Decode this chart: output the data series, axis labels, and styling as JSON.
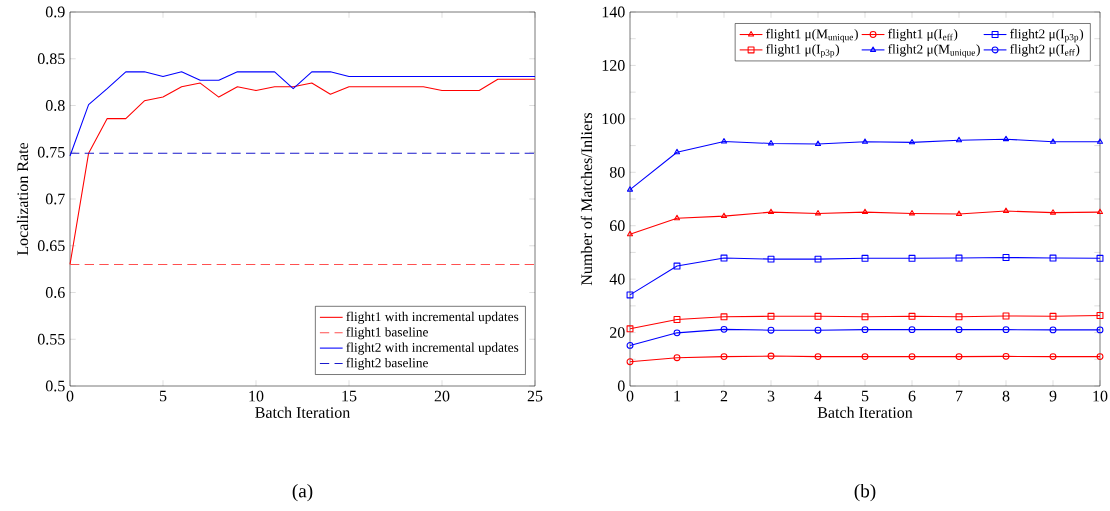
{
  "chart_data": [
    {
      "type": "line",
      "xlabel": "Batch Iteration",
      "ylabel": "Localization Rate",
      "xlim": [
        0,
        25
      ],
      "xticks": [
        0,
        5,
        10,
        15,
        20,
        25
      ],
      "ylim": [
        0.5,
        0.9
      ],
      "yticks": [
        0.5,
        0.55,
        0.6,
        0.65,
        0.7,
        0.75,
        0.8,
        0.85,
        0.9
      ],
      "grid": false,
      "legend": "bottom right",
      "annotations": [
        "(a)"
      ],
      "series": [
        {
          "name": "flight1 with incremental updates",
          "color": "#ff0000",
          "line_style": "solid",
          "x": [
            0,
            1,
            2,
            3,
            4,
            5,
            6,
            7,
            8,
            9,
            10,
            11,
            12,
            13,
            14,
            15,
            16,
            17,
            18,
            19,
            20,
            21,
            22,
            23,
            24,
            25
          ],
          "values": [
            0.63,
            0.749,
            0.786,
            0.786,
            0.805,
            0.809,
            0.82,
            0.824,
            0.809,
            0.82,
            0.816,
            0.82,
            0.82,
            0.824,
            0.812,
            0.82,
            0.82,
            0.82,
            0.82,
            0.82,
            0.816,
            0.816,
            0.816,
            0.828,
            0.828,
            0.828
          ]
        },
        {
          "name": "flight1 baseline",
          "color": "#ff5050",
          "line_style": "dashed",
          "x": [
            0,
            25
          ],
          "values": [
            0.63,
            0.63
          ]
        },
        {
          "name": "flight2 with incremental updates",
          "color": "#0000ff",
          "line_style": "solid",
          "x": [
            0,
            1,
            2,
            3,
            4,
            5,
            6,
            7,
            8,
            9,
            10,
            11,
            12,
            13,
            14,
            15,
            16,
            17,
            18,
            19,
            20,
            21,
            22,
            23,
            24,
            25
          ],
          "values": [
            0.746,
            0.801,
            0.818,
            0.836,
            0.836,
            0.831,
            0.836,
            0.827,
            0.827,
            0.836,
            0.836,
            0.836,
            0.818,
            0.836,
            0.836,
            0.831,
            0.831,
            0.831,
            0.831,
            0.831,
            0.831,
            0.831,
            0.831,
            0.831,
            0.831,
            0.831
          ]
        },
        {
          "name": "flight2 baseline",
          "color": "#1a1acc",
          "line_style": "dashed",
          "x": [
            0,
            25
          ],
          "values": [
            0.749,
            0.749
          ]
        }
      ]
    },
    {
      "type": "line",
      "xlabel": "Batch Iteration",
      "ylabel": "Number of Matches/Inliers",
      "xlim": [
        0,
        10
      ],
      "xticks": [
        0,
        1,
        2,
        3,
        4,
        5,
        6,
        7,
        8,
        9,
        10
      ],
      "ylim": [
        0,
        140
      ],
      "yticks": [
        0,
        {
          "value": 10,
          "label": null
        },
        20,
        {
          "value": 30,
          "label": null
        },
        40,
        {
          "value": 50,
          "label": null
        },
        60,
        {
          "value": 70,
          "label": null
        },
        80,
        {
          "value": 90,
          "label": null
        },
        100,
        {
          "value": 110,
          "label": null
        },
        120,
        {
          "value": 130,
          "label": null
        },
        140
      ],
      "grid": false,
      "legend": "top right",
      "annotations": [
        "(b)"
      ],
      "x": [
        0,
        1,
        2,
        3,
        4,
        5,
        6,
        7,
        8,
        9,
        10
      ],
      "series": [
        {
          "name": "flight1 μ(M$_{unique}$)",
          "color": "#ff0000",
          "marker": "triangle",
          "line_style": "solid",
          "values": [
            56.8,
            62.8,
            63.6,
            65.1,
            64.6,
            65.1,
            64.6,
            64.4,
            65.5,
            64.9,
            65.1
          ]
        },
        {
          "name": "flight1 μ(I$_{p3p}$)",
          "color": "#ff0000",
          "marker": "square",
          "line_style": "solid",
          "values": [
            21.4,
            24.9,
            25.9,
            26.1,
            26.1,
            25.9,
            26.1,
            25.9,
            26.2,
            26.1,
            26.4
          ]
        },
        {
          "name": "flight1 μ(I$_{eff}$)",
          "color": "#ff0000",
          "marker": "circle",
          "line_style": "solid",
          "values": [
            9.1,
            10.6,
            11.0,
            11.2,
            11.0,
            11.0,
            11.0,
            11.0,
            11.1,
            11.0,
            11.0
          ]
        },
        {
          "name": "flight2 μ(M$_{unique}$)",
          "color": "#0000ff",
          "marker": "triangle",
          "line_style": "solid",
          "values": [
            73.5,
            87.5,
            91.5,
            90.8,
            90.6,
            91.4,
            91.2,
            92.0,
            92.4,
            91.4,
            91.4
          ]
        },
        {
          "name": "flight2 μ(I$_{p3p}$)",
          "color": "#0000ff",
          "marker": "square",
          "line_style": "solid",
          "values": [
            34.1,
            44.9,
            47.9,
            47.5,
            47.5,
            47.8,
            47.8,
            47.9,
            48.1,
            47.9,
            47.8
          ]
        },
        {
          "name": "flight2 μ(I$_{eff}$)",
          "color": "#0000ff",
          "marker": "circle",
          "line_style": "solid",
          "values": [
            15.2,
            19.9,
            21.2,
            20.9,
            20.9,
            21.1,
            21.1,
            21.1,
            21.1,
            21.0,
            21.0
          ]
        }
      ]
    }
  ]
}
